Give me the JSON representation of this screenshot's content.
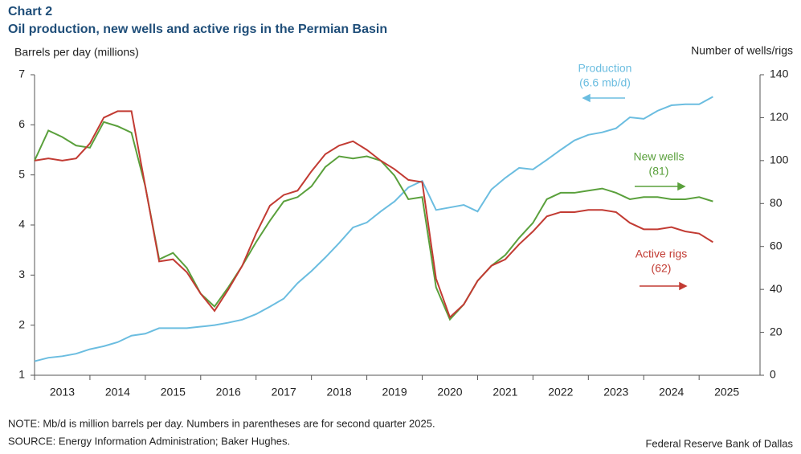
{
  "chart_data": {
    "type": "line",
    "title": "Chart 2",
    "subtitle": "Oil production, new wells and active rigs in the Permian Basin",
    "y_label": "Barrels per day (millions)",
    "y2_label": "Number of wells/rigs",
    "x": [
      2013,
      2013.25,
      2013.5,
      2013.75,
      2014,
      2014.25,
      2014.5,
      2014.75,
      2015,
      2015.25,
      2015.5,
      2015.75,
      2016,
      2016.25,
      2016.5,
      2016.75,
      2017,
      2017.25,
      2017.5,
      2017.75,
      2018,
      2018.25,
      2018.5,
      2018.75,
      2019,
      2019.25,
      2019.5,
      2019.75,
      2020,
      2020.25,
      2020.5,
      2020.75,
      2021,
      2021.25,
      2021.5,
      2021.75,
      2022,
      2022.25,
      2022.5,
      2022.75,
      2023,
      2023.25,
      2023.5,
      2023.75,
      2024,
      2024.25,
      2024.5,
      2024.75,
      2025,
      2025.25
    ],
    "xlim": [
      2013,
      2026.1
    ],
    "xticks": [
      {
        "value": 2013,
        "label": "2013"
      },
      {
        "value": 2014,
        "label": "2014"
      },
      {
        "value": 2015,
        "label": "2015"
      },
      {
        "value": 2016,
        "label": "2016"
      },
      {
        "value": 2017,
        "label": "2017"
      },
      {
        "value": 2018,
        "label": "2018"
      },
      {
        "value": 2019,
        "label": "2019"
      },
      {
        "value": 2020,
        "label": "2020"
      },
      {
        "value": 2021,
        "label": "2021"
      },
      {
        "value": 2022,
        "label": "2022"
      },
      {
        "value": 2023,
        "label": "2023"
      },
      {
        "value": 2024,
        "label": "2024"
      },
      {
        "value": 2025,
        "label": "2025"
      }
    ],
    "ylim": [
      1,
      7
    ],
    "yticks": [
      1,
      2,
      3,
      4,
      5,
      6,
      7
    ],
    "y2lim": [
      0,
      140
    ],
    "y2ticks": [
      0,
      20,
      40,
      60,
      80,
      100,
      120,
      140
    ],
    "grid": false,
    "series": [
      {
        "name": "Production",
        "color": "#6bbde0",
        "axis": "y",
        "values": [
          1.28,
          1.35,
          1.38,
          1.43,
          1.52,
          1.58,
          1.66,
          1.79,
          1.83,
          1.94,
          1.94,
          1.94,
          1.97,
          2.0,
          2.05,
          2.11,
          2.22,
          2.37,
          2.53,
          2.84,
          3.08,
          3.35,
          3.64,
          3.95,
          4.05,
          4.27,
          4.47,
          4.75,
          4.88,
          4.3,
          4.35,
          4.4,
          4.27,
          4.71,
          4.94,
          5.14,
          5.11,
          5.3,
          5.5,
          5.69,
          5.8,
          5.85,
          5.93,
          6.15,
          6.12,
          6.28,
          6.39,
          6.41,
          6.41,
          6.56
        ]
      },
      {
        "name": "New wells",
        "color": "#5aa03c",
        "axis": "y2",
        "values": [
          100,
          114,
          111,
          107,
          106,
          118,
          116,
          113,
          88,
          54,
          57,
          50,
          38,
          32,
          41,
          51,
          62,
          72,
          81,
          83,
          88,
          97,
          102,
          101,
          102,
          100,
          93,
          82,
          83,
          41,
          26,
          33,
          44,
          51,
          56,
          64,
          71,
          82,
          85,
          85,
          86,
          87,
          85,
          82,
          83,
          83,
          82,
          82,
          83,
          81
        ]
      },
      {
        "name": "Active rigs",
        "color": "#c23b33",
        "axis": "y2",
        "values": [
          100,
          101,
          100,
          101,
          108,
          120,
          123,
          123,
          88,
          53,
          54,
          48,
          38,
          30,
          40,
          51,
          66,
          79,
          84,
          86,
          95,
          103,
          107,
          109,
          105,
          100,
          96,
          91,
          90,
          45,
          27,
          33,
          44,
          51,
          54,
          61,
          67,
          74,
          76,
          76,
          77,
          77,
          76,
          71,
          68,
          68,
          69,
          67,
          66,
          62
        ]
      }
    ],
    "annotations": [
      "Production",
      "(6.6 mb/d)",
      "New wells",
      "(81)",
      "Active rigs",
      "(62)"
    ],
    "note": "NOTE: Mb/d is million barrels per day. Numbers in parentheses are for second quarter 2025.",
    "source": "SOURCE: Energy Information Administration; Baker Hughes.",
    "credit": "Federal Reserve Bank of Dallas"
  }
}
